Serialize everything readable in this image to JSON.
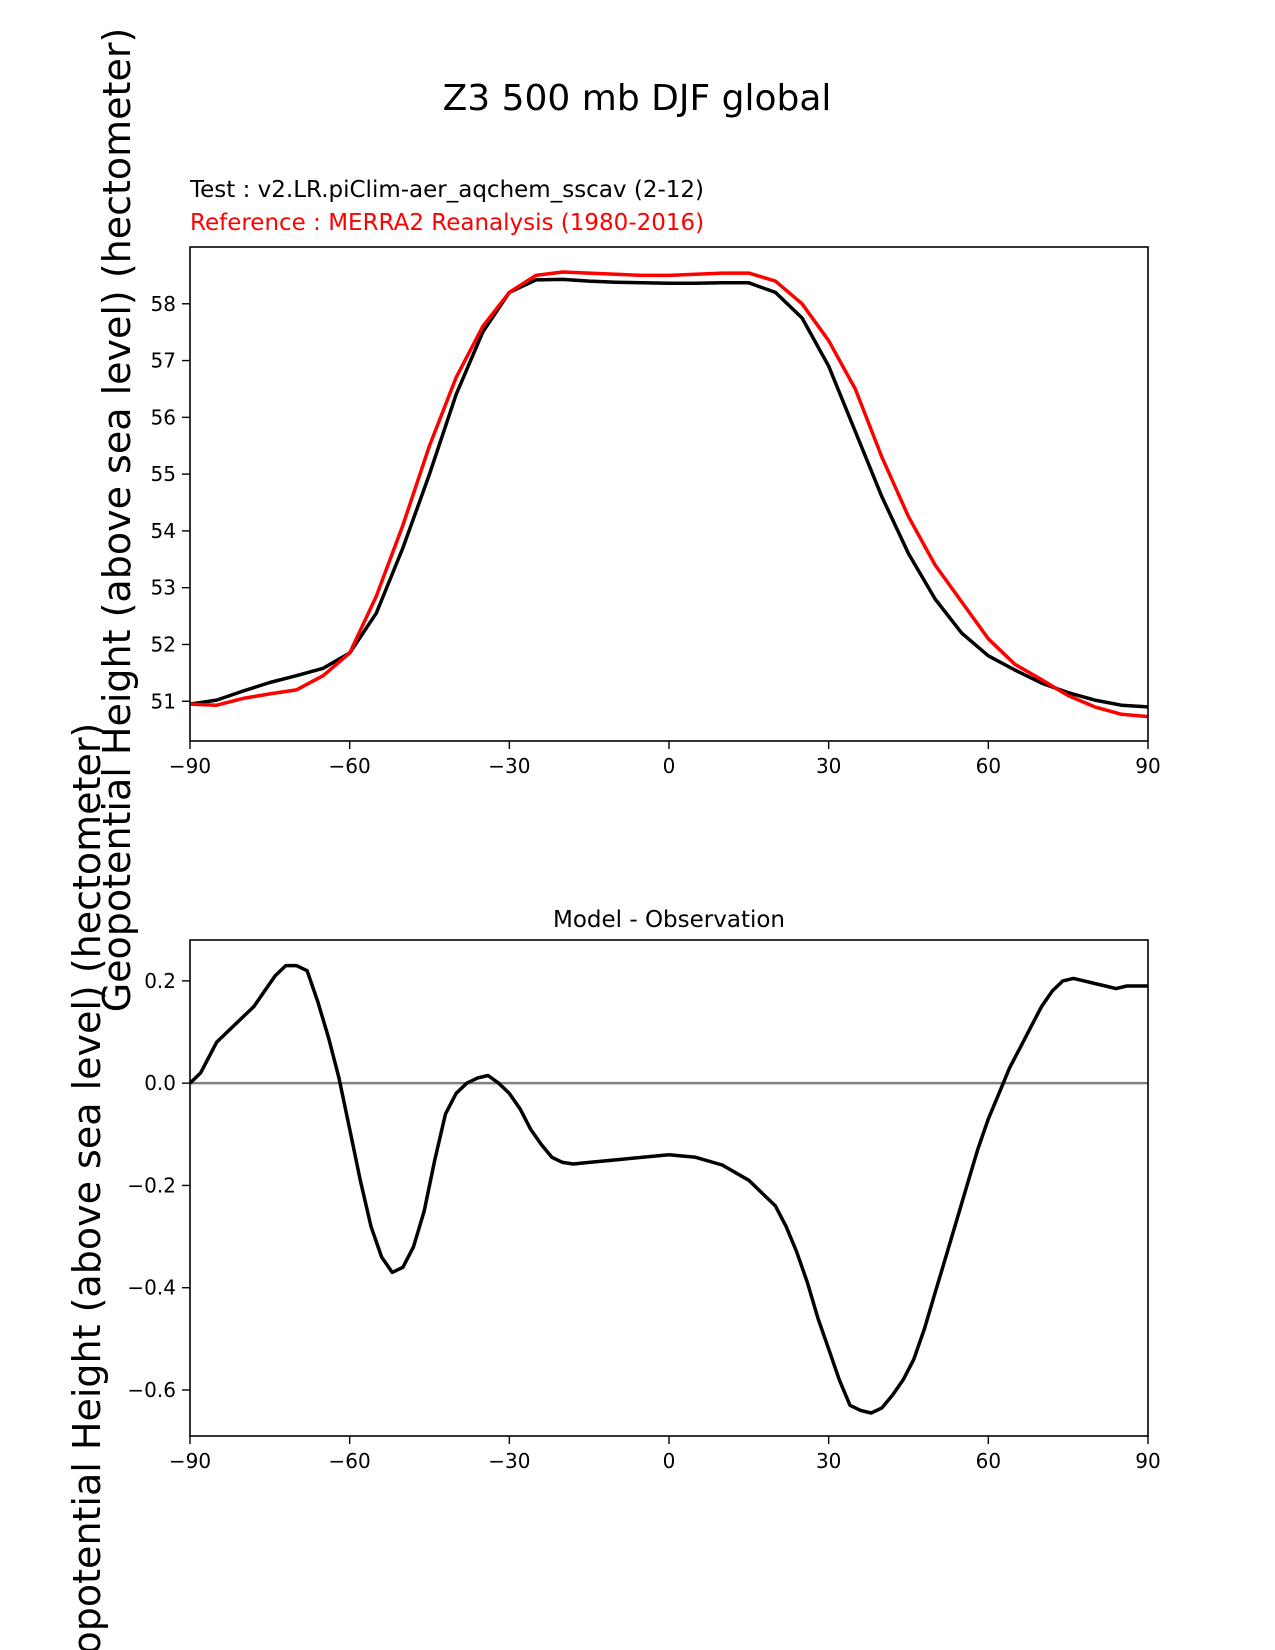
{
  "figure_title": "Z3 500 mb DJF global",
  "test_label": "Test : v2.LR.piClim-aer_aqchem_sscav (2-12)",
  "ref_label": "Reference : MERRA2 Reanalysis (1980-2016)",
  "ylabel": "Geopotential Height (above sea level) (hectometer)",
  "colors": {
    "test": "#000000",
    "reference": "#ff0000",
    "zero_line": "#808080"
  },
  "chart_data": [
    {
      "type": "line",
      "title": "",
      "xlabel": "",
      "ylabel": "Geopotential Height (above sea level) (hectometer)",
      "xlim": [
        -90,
        90
      ],
      "ylim": [
        50.3,
        59.0
      ],
      "xticks": [
        -90,
        -60,
        -30,
        0,
        30,
        60,
        90
      ],
      "xtick_labels": [
        "−90",
        "−60",
        "−30",
        "0",
        "30",
        "60",
        "90"
      ],
      "yticks": [
        51,
        52,
        53,
        54,
        55,
        56,
        57,
        58
      ],
      "ytick_labels": [
        "51",
        "52",
        "53",
        "54",
        "55",
        "56",
        "57",
        "58"
      ],
      "series": [
        {
          "name": "Test : v2.LR.piClim-aer_aqchem_sscav (2-12)",
          "x": [
            -90,
            -85,
            -80,
            -75,
            -70,
            -65,
            -60,
            -55,
            -50,
            -45,
            -40,
            -35,
            -30,
            -25,
            -20,
            -15,
            -10,
            -5,
            0,
            5,
            10,
            15,
            20,
            25,
            30,
            35,
            40,
            45,
            50,
            55,
            60,
            65,
            70,
            75,
            80,
            85,
            90
          ],
          "y": [
            50.95,
            51.02,
            51.18,
            51.33,
            51.45,
            51.58,
            51.85,
            52.55,
            53.7,
            55.0,
            56.4,
            57.5,
            58.2,
            58.42,
            58.43,
            58.4,
            58.38,
            58.37,
            58.36,
            58.36,
            58.37,
            58.37,
            58.2,
            57.75,
            56.9,
            55.75,
            54.6,
            53.6,
            52.8,
            52.2,
            51.8,
            51.55,
            51.32,
            51.15,
            51.02,
            50.93,
            50.9
          ]
        },
        {
          "name": "Reference : MERRA2 Reanalysis (1980-2016)",
          "x": [
            -90,
            -85,
            -80,
            -75,
            -70,
            -65,
            -60,
            -55,
            -50,
            -45,
            -40,
            -35,
            -30,
            -25,
            -20,
            -15,
            -10,
            -5,
            0,
            5,
            10,
            15,
            20,
            25,
            30,
            35,
            40,
            45,
            50,
            55,
            60,
            65,
            70,
            75,
            80,
            85,
            90
          ],
          "y": [
            50.95,
            50.93,
            51.05,
            51.13,
            51.2,
            51.45,
            51.85,
            52.85,
            54.1,
            55.5,
            56.7,
            57.6,
            58.2,
            58.5,
            58.56,
            58.54,
            58.52,
            58.5,
            58.5,
            58.52,
            58.54,
            58.54,
            58.4,
            58.0,
            57.35,
            56.5,
            55.3,
            54.25,
            53.4,
            52.75,
            52.1,
            51.65,
            51.38,
            51.1,
            50.9,
            50.77,
            50.73
          ]
        }
      ]
    },
    {
      "type": "line",
      "title": "Model - Observation",
      "xlabel": "",
      "ylabel": "Geopotential Height (above sea level) (hectometer)",
      "xlim": [
        -90,
        90
      ],
      "ylim": [
        -0.69,
        0.28
      ],
      "xticks": [
        -90,
        -60,
        -30,
        0,
        30,
        60,
        90
      ],
      "xtick_labels": [
        "−90",
        "−60",
        "−30",
        "0",
        "30",
        "60",
        "90"
      ],
      "yticks": [
        0.2,
        0.0,
        -0.2,
        -0.4,
        -0.6
      ],
      "ytick_labels": [
        "0.2",
        "0.0",
        "−0.2",
        "−0.4",
        "−0.6"
      ],
      "zero_line": 0.0,
      "series": [
        {
          "name": "Model - Observation",
          "x": [
            -90,
            -88,
            -85,
            -82,
            -80,
            -78,
            -76,
            -74,
            -72,
            -70,
            -68,
            -66,
            -64,
            -62,
            -60,
            -58,
            -56,
            -54,
            -52,
            -50,
            -48,
            -46,
            -44,
            -42,
            -40,
            -38,
            -36,
            -34,
            -32,
            -30,
            -28,
            -26,
            -24,
            -22,
            -20,
            -18,
            -15,
            -10,
            -5,
            0,
            5,
            10,
            15,
            18,
            20,
            22,
            24,
            26,
            28,
            30,
            32,
            34,
            36,
            38,
            40,
            42,
            44,
            46,
            48,
            50,
            52,
            54,
            56,
            58,
            60,
            62,
            64,
            66,
            68,
            70,
            72,
            74,
            76,
            78,
            80,
            82,
            84,
            86,
            88,
            90
          ],
          "y": [
            0.0,
            0.02,
            0.08,
            0.11,
            0.13,
            0.15,
            0.18,
            0.21,
            0.23,
            0.23,
            0.22,
            0.16,
            0.09,
            0.01,
            -0.09,
            -0.19,
            -0.28,
            -0.34,
            -0.37,
            -0.36,
            -0.32,
            -0.25,
            -0.15,
            -0.06,
            -0.02,
            0.0,
            0.01,
            0.015,
            0.0,
            -0.02,
            -0.05,
            -0.09,
            -0.12,
            -0.145,
            -0.155,
            -0.158,
            -0.155,
            -0.15,
            -0.145,
            -0.14,
            -0.145,
            -0.16,
            -0.19,
            -0.22,
            -0.24,
            -0.28,
            -0.33,
            -0.39,
            -0.46,
            -0.52,
            -0.58,
            -0.63,
            -0.64,
            -0.645,
            -0.635,
            -0.61,
            -0.58,
            -0.54,
            -0.48,
            -0.41,
            -0.34,
            -0.27,
            -0.2,
            -0.13,
            -0.07,
            -0.02,
            0.03,
            0.07,
            0.11,
            0.15,
            0.18,
            0.2,
            0.205,
            0.2,
            0.195,
            0.19,
            0.185,
            0.19,
            0.19,
            0.19
          ]
        }
      ]
    }
  ]
}
